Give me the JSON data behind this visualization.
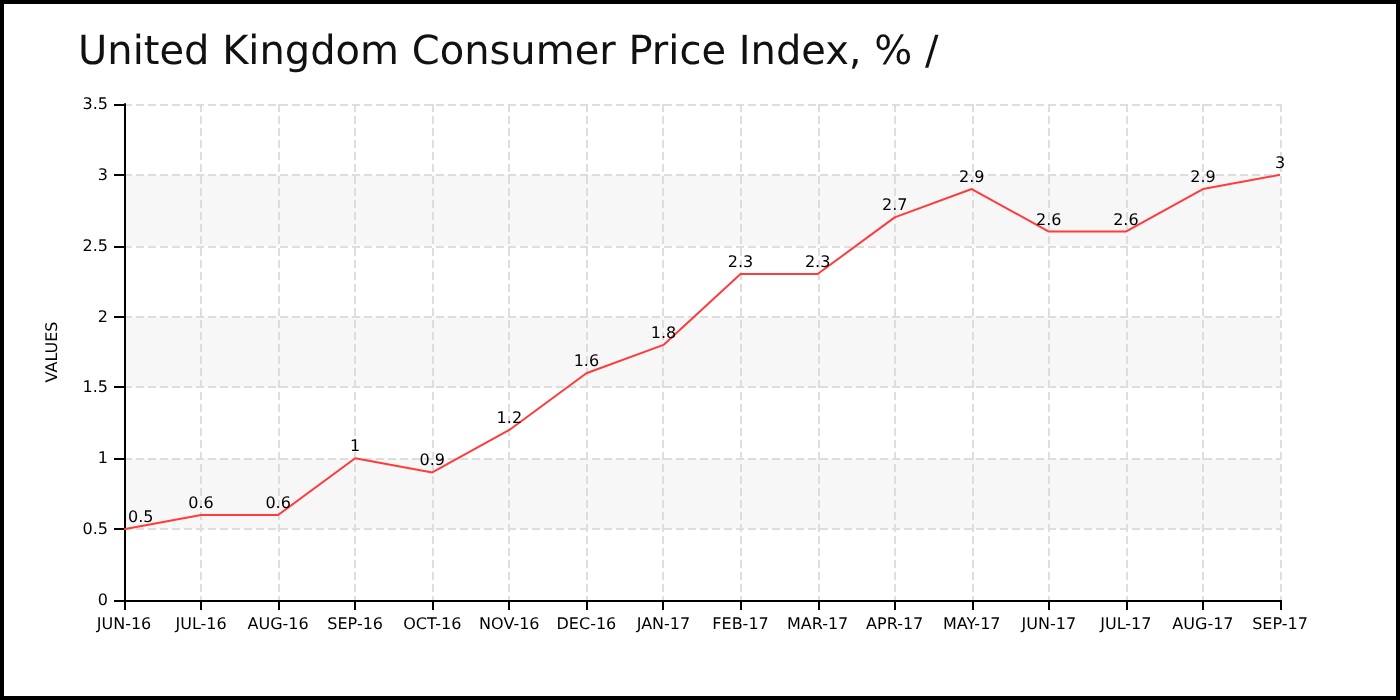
{
  "chart_data": {
    "type": "line",
    "title": "United Kingdom Consumer Price Index, % /",
    "ylabel": "VALUES",
    "categories": [
      "JUN-16",
      "JUL-16",
      "AUG-16",
      "SEP-16",
      "OCT-16",
      "NOV-16",
      "DEC-16",
      "JAN-17",
      "FEB-17",
      "MAR-17",
      "APR-17",
      "MAY-17",
      "JUN-17",
      "JUL-17",
      "AUG-17",
      "SEP-17"
    ],
    "series": [
      {
        "color": "#ff3b3b",
        "values": [
          0.5,
          0.6,
          0.6,
          1,
          0.9,
          1.2,
          1.6,
          1.8,
          2.3,
          2.3,
          2.7,
          2.9,
          2.6,
          2.6,
          2.9,
          3
        ]
      }
    ],
    "ylim": [
      0,
      3.5
    ],
    "yticks": [
      0,
      0.5,
      1,
      1.5,
      2,
      2.5,
      3,
      3.5
    ],
    "grid": true,
    "data_labels": true,
    "marker": "none",
    "line_style": "solid"
  }
}
